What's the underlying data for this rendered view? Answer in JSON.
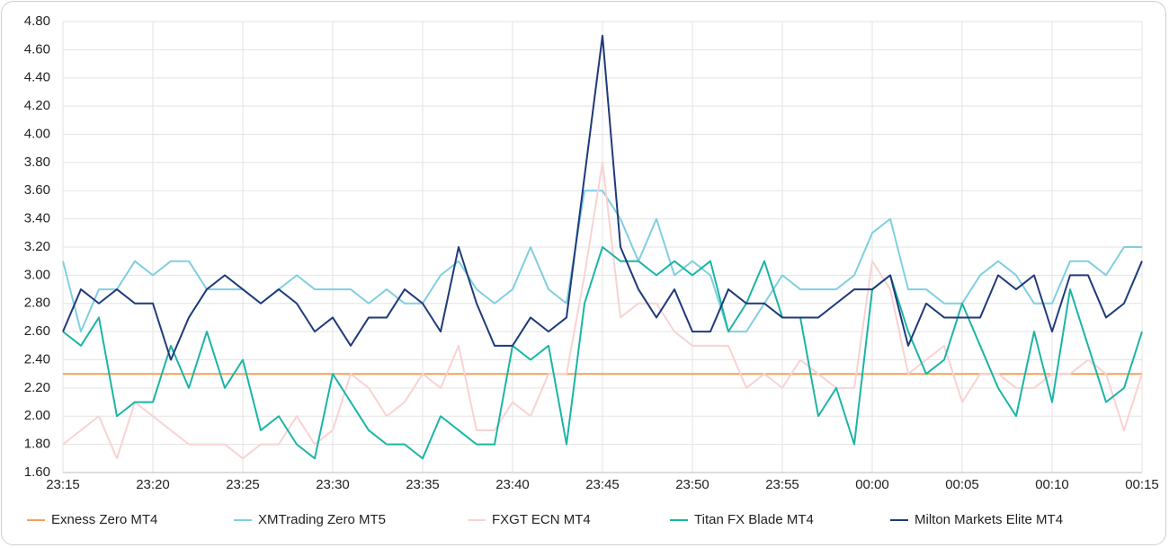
{
  "chart_data": {
    "type": "line",
    "categories": [
      "23:15",
      null,
      null,
      null,
      null,
      "23:20",
      null,
      null,
      null,
      null,
      "23:25",
      null,
      null,
      null,
      null,
      "23:30",
      null,
      null,
      null,
      null,
      "23:35",
      null,
      null,
      null,
      null,
      "23:40",
      null,
      null,
      null,
      null,
      "23:45",
      null,
      null,
      null,
      null,
      "23:50",
      null,
      null,
      null,
      null,
      "23:55",
      null,
      null,
      null,
      null,
      "00:00",
      null,
      null,
      null,
      null,
      "00:05",
      null,
      null,
      null,
      null,
      "00:10",
      null,
      null,
      null,
      null,
      "00:15"
    ],
    "series": [
      {
        "name": "Exness Zero MT4",
        "color": "#f5a05a",
        "values": [
          2.3,
          2.3,
          2.3,
          2.3,
          2.3,
          2.3,
          2.3,
          2.3,
          2.3,
          2.3,
          2.3,
          2.3,
          2.3,
          2.3,
          2.3,
          2.3,
          2.3,
          2.3,
          2.3,
          2.3,
          2.3,
          2.3,
          2.3,
          2.3,
          2.3,
          2.3,
          2.3,
          2.3,
          2.3,
          2.3,
          2.3,
          2.3,
          2.3,
          2.3,
          2.3,
          2.3,
          2.3,
          2.3,
          2.3,
          2.3,
          2.3,
          2.3,
          2.3,
          2.3,
          2.3,
          2.3,
          2.3,
          2.3,
          2.3,
          2.3,
          2.3,
          2.3,
          2.3,
          2.3,
          2.3,
          2.3,
          2.3,
          2.3,
          2.3,
          2.3,
          2.3
        ]
      },
      {
        "name": "XMTrading Zero MT5",
        "color": "#7fcfe0",
        "values": [
          3.1,
          2.6,
          2.9,
          2.9,
          3.1,
          3.0,
          3.1,
          3.1,
          2.9,
          2.9,
          2.9,
          2.8,
          2.9,
          3.0,
          2.9,
          2.9,
          2.9,
          2.8,
          2.9,
          2.8,
          2.8,
          3.0,
          3.1,
          2.9,
          2.8,
          2.9,
          3.2,
          2.9,
          2.8,
          3.6,
          3.6,
          3.4,
          3.1,
          3.4,
          3.0,
          3.1,
          3.0,
          2.6,
          2.6,
          2.8,
          3.0,
          2.9,
          2.9,
          2.9,
          3.0,
          3.3,
          3.4,
          2.9,
          2.9,
          2.8,
          2.8,
          3.0,
          3.1,
          3.0,
          2.8,
          2.8,
          3.1,
          3.1,
          3.0,
          3.2,
          3.2
        ]
      },
      {
        "name": "FXGT ECN MT4",
        "color": "#f9d2d2",
        "values": [
          1.8,
          1.9,
          2.0,
          1.7,
          2.1,
          2.0,
          1.9,
          1.8,
          1.8,
          1.8,
          1.7,
          1.8,
          1.8,
          2.0,
          1.8,
          1.9,
          2.3,
          2.2,
          2.0,
          2.1,
          2.3,
          2.2,
          2.5,
          1.9,
          1.9,
          2.1,
          2.0,
          2.3,
          2.3,
          3.0,
          3.8,
          2.7,
          2.8,
          2.8,
          2.6,
          2.5,
          2.5,
          2.5,
          2.2,
          2.3,
          2.2,
          2.4,
          2.3,
          2.2,
          2.2,
          3.1,
          2.9,
          2.3,
          2.4,
          2.5,
          2.1,
          2.3,
          2.3,
          2.2,
          2.2,
          2.3,
          2.3,
          2.4,
          2.3,
          1.9,
          2.3
        ]
      },
      {
        "name": "Titan FX Blade MT4",
        "color": "#1ab5a5",
        "values": [
          2.6,
          2.5,
          2.7,
          2.0,
          2.1,
          2.1,
          2.5,
          2.2,
          2.6,
          2.2,
          2.4,
          1.9,
          2.0,
          1.8,
          1.7,
          2.3,
          2.1,
          1.9,
          1.8,
          1.8,
          1.7,
          2.0,
          1.9,
          1.8,
          1.8,
          2.5,
          2.4,
          2.5,
          1.8,
          2.8,
          3.2,
          3.1,
          3.1,
          3.0,
          3.1,
          3.0,
          3.1,
          2.6,
          2.8,
          3.1,
          2.7,
          2.7,
          2.0,
          2.2,
          1.8,
          2.9,
          3.0,
          2.6,
          2.3,
          2.4,
          2.8,
          2.5,
          2.2,
          2.0,
          2.6,
          2.1,
          2.9,
          2.5,
          2.1,
          2.2,
          2.6
        ]
      },
      {
        "name": "Milton Markets Elite MT4",
        "color": "#1f3a7a",
        "values": [
          2.6,
          2.9,
          2.8,
          2.9,
          2.8,
          2.8,
          2.4,
          2.7,
          2.9,
          3.0,
          2.9,
          2.8,
          2.9,
          2.8,
          2.6,
          2.7,
          2.5,
          2.7,
          2.7,
          2.9,
          2.8,
          2.6,
          3.2,
          2.8,
          2.5,
          2.5,
          2.7,
          2.6,
          2.7,
          3.7,
          4.7,
          3.2,
          2.9,
          2.7,
          2.9,
          2.6,
          2.6,
          2.9,
          2.8,
          2.8,
          2.7,
          2.7,
          2.7,
          2.8,
          2.9,
          2.9,
          3.0,
          2.5,
          2.8,
          2.7,
          2.7,
          2.7,
          3.0,
          2.9,
          3.0,
          2.6,
          3.0,
          3.0,
          2.7,
          2.8,
          3.1
        ]
      }
    ],
    "ylim": [
      1.6,
      4.8
    ],
    "yticks": [
      {
        "value": 1.6,
        "label": "1.60"
      },
      {
        "value": 1.8,
        "label": "1.80"
      },
      {
        "value": 2.0,
        "label": "2.00"
      },
      {
        "value": 2.2,
        "label": "2.20"
      },
      {
        "value": 2.4,
        "label": "2.40"
      },
      {
        "value": 2.6,
        "label": "2.60"
      },
      {
        "value": 2.8,
        "label": "2.80"
      },
      {
        "value": 3.0,
        "label": "3.00"
      },
      {
        "value": 3.2,
        "label": "3.20"
      },
      {
        "value": 3.4,
        "label": "3.40"
      },
      {
        "value": 3.6,
        "label": "3.60"
      },
      {
        "value": 3.8,
        "label": "3.80"
      },
      {
        "value": 4.0,
        "label": "4.00"
      },
      {
        "value": 4.2,
        "label": "4.20"
      },
      {
        "value": 4.4,
        "label": "4.40"
      },
      {
        "value": 4.6,
        "label": "4.60"
      },
      {
        "value": 4.8,
        "label": "4.80"
      }
    ],
    "grid": true,
    "legend": "bottom"
  }
}
